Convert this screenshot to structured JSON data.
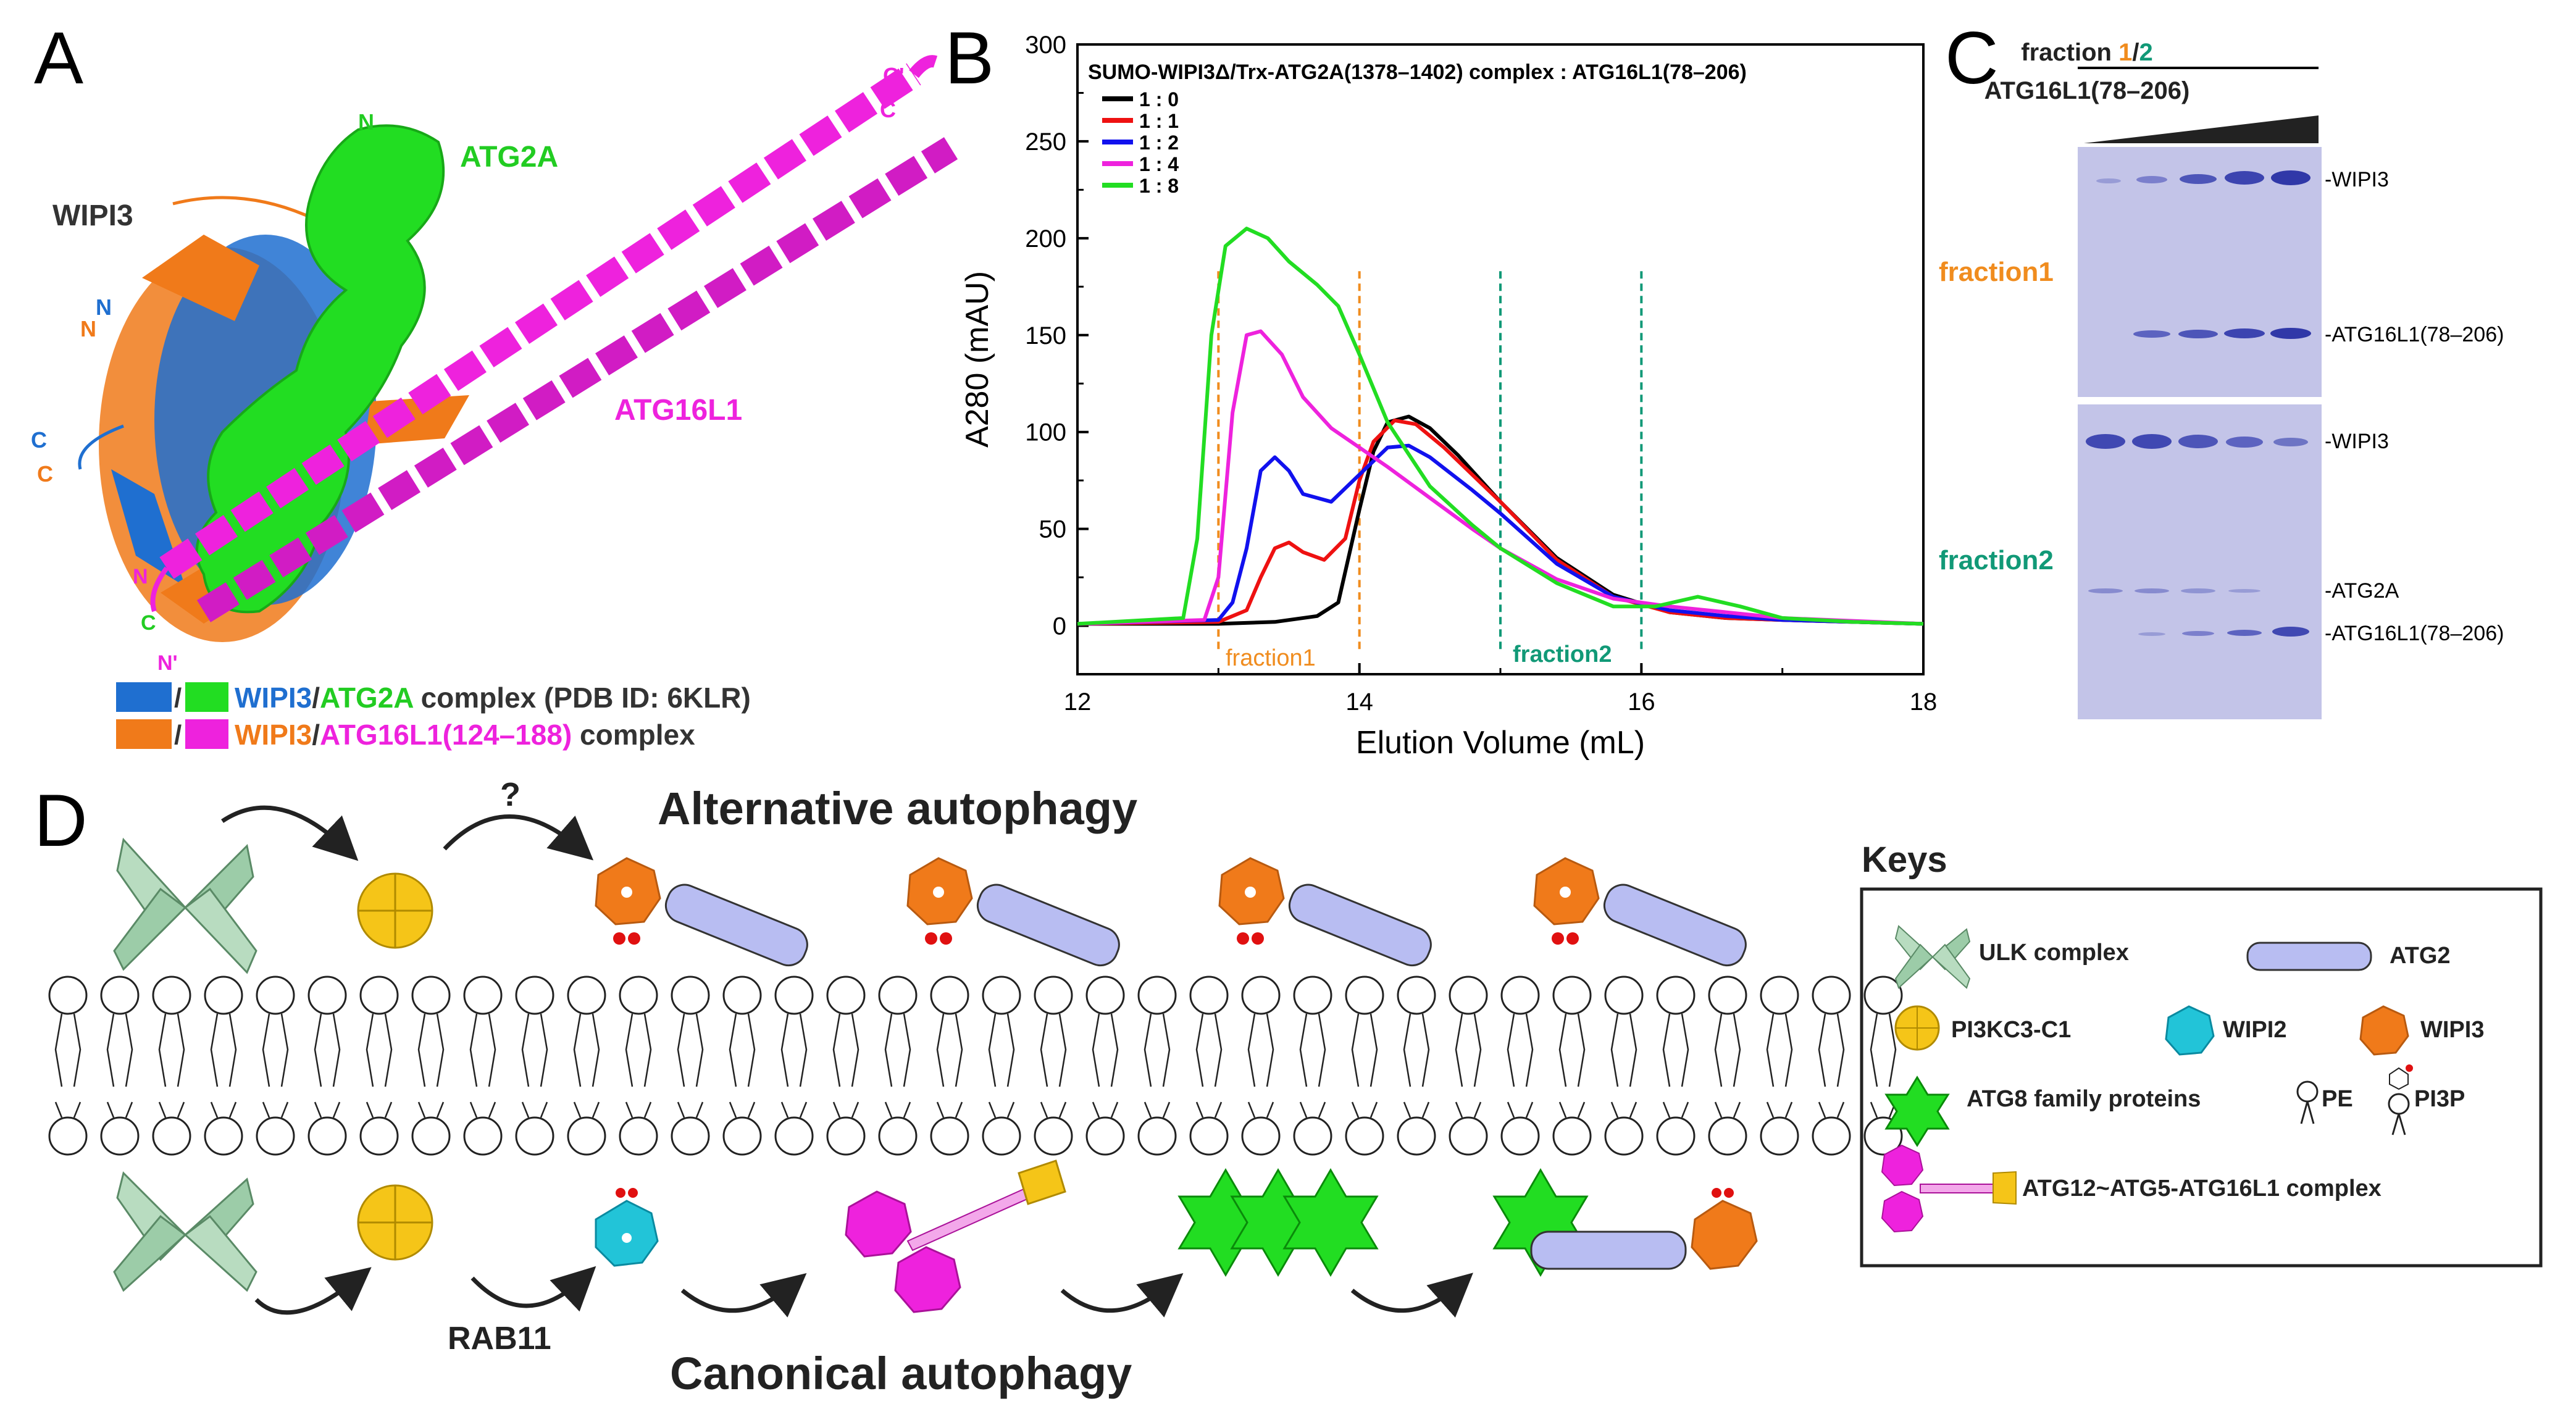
{
  "panel_letters": {
    "a": "A",
    "b": "B",
    "c": "C",
    "d": "D"
  },
  "panel_a": {
    "labels": {
      "n_green": "N",
      "atg2a": "ATG2A",
      "c_prime": "C'",
      "c_mag": "C",
      "wipi3": "WIPI3",
      "n_blue": "N",
      "n_orange": "N",
      "c_blue": "C",
      "c_orange": "C",
      "atg16l1": "ATG16L1",
      "n_mag": "N",
      "c_green": "C",
      "n_prime": "N'"
    },
    "legend1": {
      "sep": "/",
      "wipi3": "WIPI3",
      "slash": "/",
      "atg2a": "ATG2A",
      "rest": " complex (PDB ID: 6KLR)"
    },
    "legend2": {
      "sep": "/",
      "wipi3": "WIPI3",
      "slash": "/",
      "atg16": "ATG16L1(124–188)",
      "rest": " complex"
    },
    "colors": {
      "wipi3_blue": "#1f6fd0",
      "atg2a_green": "#22dd22",
      "wipi3_orange": "#f07a1a",
      "atg16_magenta": "#ee22dd"
    }
  },
  "chart_data": {
    "type": "line",
    "title": "SUMO-WIPI3Δ/Trx-ATG2A(1378–1402) complex : ATG16L1(78–206)",
    "xlabel": "Elution Volume (mL)",
    "ylabel": "A280 (mAU)",
    "xlim": [
      12,
      18
    ],
    "ylim": [
      -25,
      300
    ],
    "xticks": [
      "12",
      "14",
      "16",
      "18"
    ],
    "yticks": [
      "0",
      "50",
      "100",
      "150",
      "200",
      "250",
      "300"
    ],
    "legend_position": "top-left",
    "fraction_lines": [
      13.0,
      14.0,
      15.0,
      16.0
    ],
    "fraction_labels": [
      "fraction1",
      "fraction2"
    ],
    "series": [
      {
        "name": "1 : 0",
        "color": "#000000",
        "x": [
          12,
          13.0,
          13.4,
          13.7,
          13.85,
          14.0,
          14.1,
          14.2,
          14.35,
          14.5,
          14.7,
          15.0,
          15.4,
          15.8,
          16.2,
          16.6,
          17.0,
          17.5,
          18.0
        ],
        "y": [
          1,
          1,
          2,
          5,
          12,
          60,
          90,
          105,
          108,
          102,
          88,
          64,
          35,
          16,
          7,
          4,
          3,
          2,
          1
        ]
      },
      {
        "name": "1 : 1",
        "color": "#ee1111",
        "x": [
          12,
          13.0,
          13.2,
          13.3,
          13.4,
          13.5,
          13.6,
          13.75,
          13.9,
          14.0,
          14.1,
          14.25,
          14.4,
          14.6,
          15.0,
          15.4,
          15.8,
          16.2,
          16.6,
          17.0,
          18.0
        ],
        "y": [
          1,
          2,
          8,
          25,
          40,
          43,
          38,
          34,
          45,
          75,
          95,
          106,
          104,
          92,
          64,
          34,
          15,
          7,
          4,
          3,
          1
        ]
      },
      {
        "name": "1 : 2",
        "color": "#1111ee",
        "x": [
          12,
          13.0,
          13.1,
          13.2,
          13.3,
          13.4,
          13.5,
          13.6,
          13.8,
          14.0,
          14.2,
          14.35,
          14.5,
          14.8,
          15.0,
          15.4,
          15.8,
          16.2,
          16.6,
          17.0,
          18.0
        ],
        "y": [
          1,
          3,
          12,
          40,
          80,
          87,
          80,
          68,
          64,
          78,
          92,
          93,
          87,
          70,
          58,
          32,
          15,
          8,
          5,
          3,
          1
        ]
      },
      {
        "name": "1 : 4",
        "color": "#ee22dd",
        "x": [
          12,
          12.9,
          13.0,
          13.1,
          13.2,
          13.3,
          13.45,
          13.6,
          13.8,
          14.0,
          14.2,
          14.5,
          14.8,
          15.0,
          15.4,
          15.8,
          16.2,
          16.6,
          17.0,
          18.0
        ],
        "y": [
          1,
          3,
          25,
          110,
          150,
          152,
          140,
          118,
          102,
          92,
          82,
          66,
          50,
          40,
          24,
          14,
          10,
          7,
          4,
          1
        ]
      },
      {
        "name": "1 : 8",
        "color": "#22dd22",
        "x": [
          12,
          12.75,
          12.85,
          12.95,
          13.05,
          13.2,
          13.35,
          13.5,
          13.7,
          13.85,
          14.0,
          14.2,
          14.5,
          14.8,
          15.0,
          15.4,
          15.8,
          16.1,
          16.4,
          16.7,
          17.0,
          17.5,
          18.0
        ],
        "y": [
          1,
          4,
          45,
          150,
          196,
          205,
          200,
          188,
          176,
          165,
          140,
          105,
          72,
          52,
          40,
          22,
          10,
          10,
          15,
          10,
          4,
          2,
          1
        ]
      }
    ]
  },
  "panel_c": {
    "header": {
      "prefix": "fraction ",
      "one": "1",
      "slash": "/",
      "two": "2"
    },
    "sample": "ATG16L1(78–206)",
    "fraction1": "fraction1",
    "fraction2": "fraction2",
    "bands": {
      "wipi3_top": "-WIPI3",
      "atg16_top": "-ATG16L1(78–206)",
      "wipi3_bot": "-WIPI3",
      "atg2a_bot": "-ATG2A",
      "atg16_bot": "-ATG16L1(78–206)"
    },
    "colors": {
      "fraction1": "#f08c1e",
      "fraction2": "#119977",
      "gel": "#bfc0e6"
    }
  },
  "panel_d": {
    "title_top": "Alternative autophagy",
    "title_bottom": "Canonical autophagy",
    "question": "?",
    "rab11": "RAB11",
    "keys_title": "Keys",
    "keys": {
      "ulk": "ULK complex",
      "atg2": "ATG2",
      "pi3k": "PI3KC3-C1",
      "wipi2": "WIPI2",
      "wipi3": "WIPI3",
      "atg8": "ATG8 family proteins",
      "pe": "PE",
      "pi3p": "PI3P",
      "atg12": "ATG12~ATG5-ATG16L1 complex"
    }
  }
}
